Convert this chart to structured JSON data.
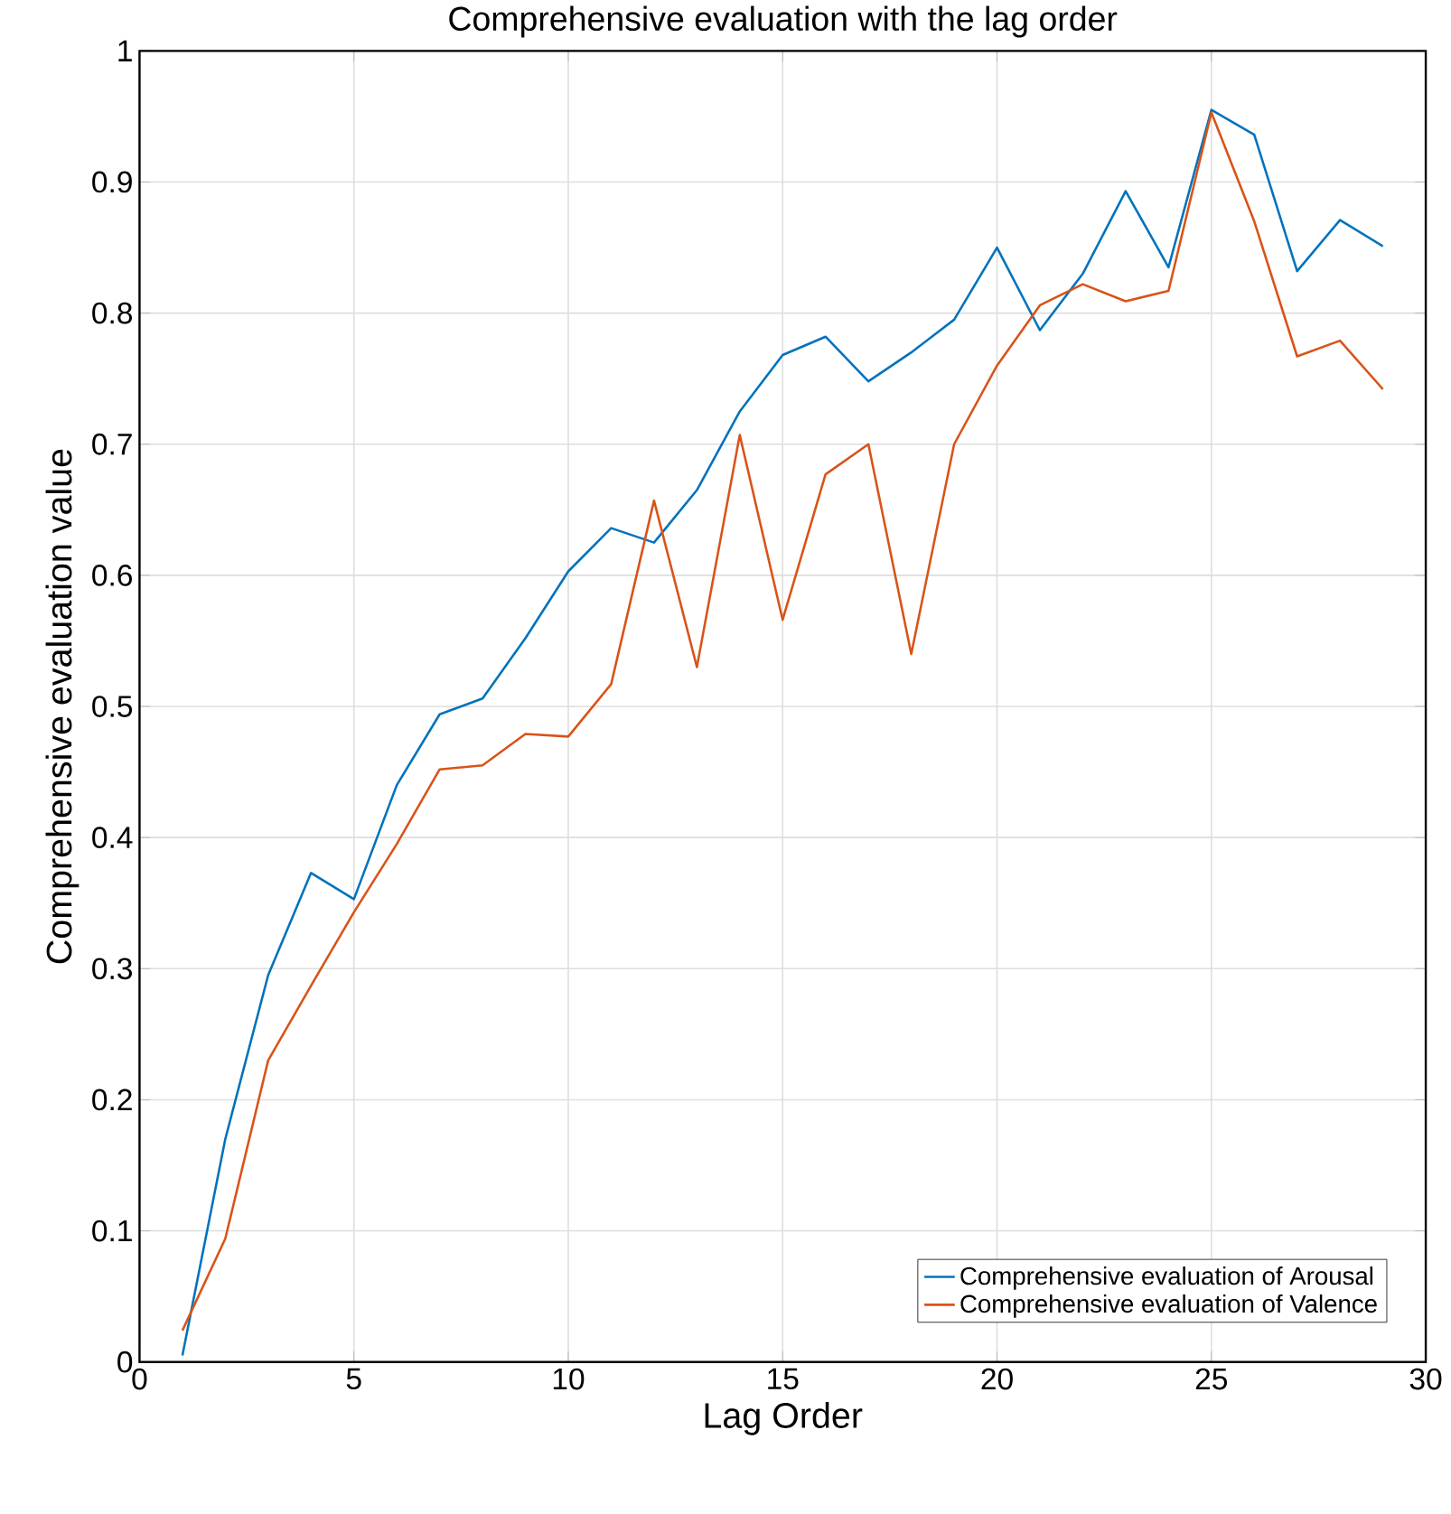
{
  "chart_data": {
    "type": "line",
    "title": "Comprehensive evaluation with the lag order",
    "xlabel": "Lag Order",
    "ylabel": "Comprehensive evaluation value",
    "x": [
      1,
      2,
      3,
      4,
      5,
      6,
      7,
      8,
      9,
      10,
      11,
      12,
      13,
      14,
      15,
      16,
      17,
      18,
      19,
      20,
      21,
      22,
      23,
      24,
      25,
      26,
      27,
      28,
      29
    ],
    "series": [
      {
        "name": "Comprehensive evaluation of Arousal",
        "color": "#0072bd",
        "values": [
          0.005,
          0.17,
          0.295,
          0.373,
          0.353,
          0.44,
          0.494,
          0.506,
          0.552,
          0.603,
          0.636,
          0.625,
          0.665,
          0.725,
          0.768,
          0.782,
          0.748,
          0.77,
          0.795,
          0.85,
          0.787,
          0.83,
          0.893,
          0.835,
          0.955,
          0.936,
          0.832,
          0.871,
          0.851
        ]
      },
      {
        "name": "Comprehensive evaluation of Valence",
        "color": "#d95319",
        "values": [
          0.024,
          0.094,
          0.23,
          0.287,
          0.343,
          0.395,
          0.452,
          0.455,
          0.479,
          0.477,
          0.517,
          0.657,
          0.53,
          0.707,
          0.566,
          0.677,
          0.7,
          0.54,
          0.7,
          0.76,
          0.806,
          0.822,
          0.809,
          0.817,
          0.953,
          0.87,
          0.767,
          0.779,
          0.742
        ]
      }
    ],
    "xlim": [
      0,
      30
    ],
    "ylim": [
      0,
      1
    ],
    "xticks": [
      0,
      5,
      10,
      15,
      20,
      25,
      30
    ],
    "yticks": [
      0,
      0.1,
      0.2,
      0.3,
      0.4,
      0.5,
      0.6,
      0.7,
      0.8,
      0.9,
      1
    ],
    "grid": true,
    "legend": "bottom right",
    "line_style": "solid",
    "marker": "none"
  }
}
